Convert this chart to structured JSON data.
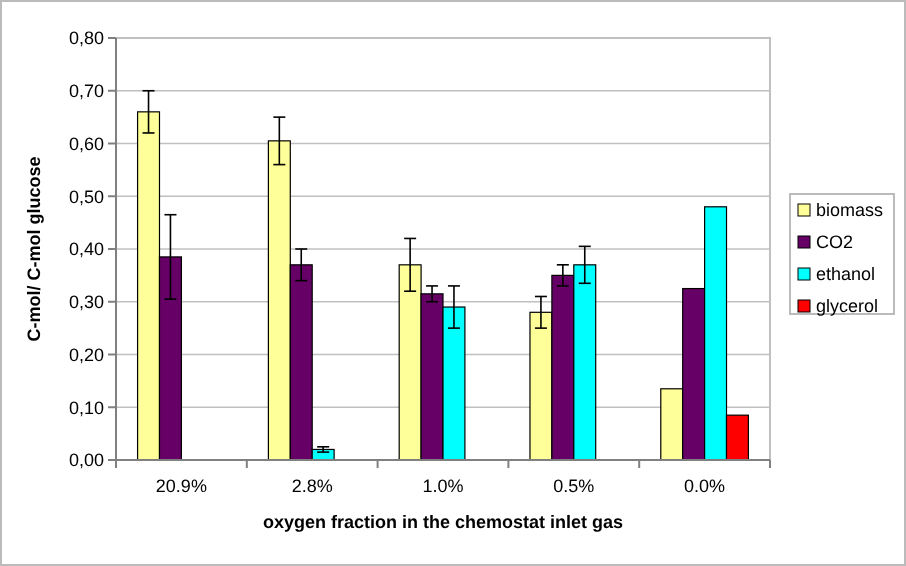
{
  "chart_data": {
    "type": "bar",
    "xlabel": "oxygen fraction in the chemostat inlet gas",
    "ylabel": "C-mol/ C-mol glucose",
    "categories": [
      "20.9%",
      "2.8%",
      "1.0%",
      "0.5%",
      "0.0%"
    ],
    "series": [
      {
        "name": "biomass",
        "color": "#ffff99",
        "values": [
          0.66,
          0.605,
          0.37,
          0.28,
          0.135
        ],
        "errors": [
          0.04,
          0.045,
          0.05,
          0.03,
          null
        ]
      },
      {
        "name": "CO2",
        "color": "#660066",
        "values": [
          0.385,
          0.37,
          0.315,
          0.35,
          0.325
        ],
        "errors": [
          0.08,
          0.03,
          0.015,
          0.02,
          null
        ]
      },
      {
        "name": "ethanol",
        "color": "#00ffff",
        "values": [
          0,
          0.02,
          0.29,
          0.37,
          0.48
        ],
        "errors": [
          null,
          0.005,
          0.04,
          0.035,
          null
        ]
      },
      {
        "name": "glycerol",
        "color": "#ff0000",
        "values": [
          0,
          0,
          0,
          0,
          0.085
        ]
      }
    ],
    "ylim": [
      0,
      0.8
    ],
    "yticks": [
      {
        "value": 0,
        "label": "0,00"
      },
      {
        "value": 0.1,
        "label": "0,10"
      },
      {
        "value": 0.2,
        "label": "0,20"
      },
      {
        "value": 0.3,
        "label": "0,30"
      },
      {
        "value": 0.4,
        "label": "0,40"
      },
      {
        "value": 0.5,
        "label": "0,50"
      },
      {
        "value": 0.6,
        "label": "0,60"
      },
      {
        "value": 0.7,
        "label": "0,70"
      },
      {
        "value": 0.8,
        "label": "0,80"
      }
    ],
    "grid": "y",
    "legend": "right"
  }
}
